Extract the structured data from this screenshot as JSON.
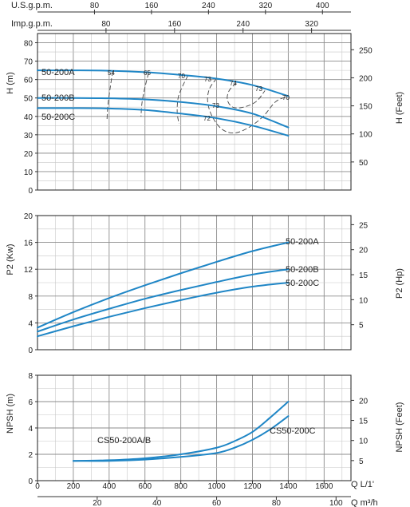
{
  "top_axes": {
    "usgpm": {
      "label": "U.S.g.p.m.",
      "ticks": [
        80,
        160,
        240,
        320,
        400
      ],
      "min": 0,
      "max": 440
    },
    "impgpm": {
      "label": "Imp.g.p.m.",
      "ticks": [
        80,
        160,
        240,
        320
      ],
      "min": 0,
      "max": 366
    }
  },
  "bottom_axes": {
    "lpm": {
      "label": "Q  L/1'",
      "ticks": [
        0,
        200,
        400,
        600,
        800,
        1000,
        1200,
        1400,
        1600
      ],
      "min": 0,
      "max": 1750
    },
    "m3h": {
      "label": "Q  m³/h",
      "ticks": [
        20,
        40,
        60,
        80,
        100
      ],
      "min": 0,
      "max": 105
    }
  },
  "chart_data": [
    {
      "type": "line",
      "panel": "head",
      "xlabel": "",
      "ylabel": "H (m)",
      "ylabel_right": "H (Feet)",
      "xlim": [
        0,
        1750
      ],
      "ylim": [
        0,
        85
      ],
      "y_ticks": [
        0,
        10,
        20,
        30,
        40,
        50,
        60,
        70,
        80
      ],
      "y_ticks_right": [
        50,
        100,
        150,
        200,
        250
      ],
      "grid": true,
      "series": [
        {
          "name": "50-200A",
          "x": [
            0,
            200,
            400,
            600,
            800,
            1000,
            1200,
            1400
          ],
          "y": [
            65,
            65,
            64.8,
            64,
            62.5,
            60.5,
            57,
            51
          ]
        },
        {
          "name": "50-200B",
          "x": [
            0,
            200,
            400,
            600,
            800,
            1000,
            1200,
            1400
          ],
          "y": [
            50,
            50,
            49.8,
            49.2,
            47.8,
            45.5,
            41.5,
            34
          ]
        },
        {
          "name": "50-200C",
          "x": [
            0,
            200,
            400,
            600,
            800,
            1000,
            1200,
            1400
          ],
          "y": [
            44.5,
            44.5,
            44.3,
            43.5,
            41.5,
            39,
            35,
            29.5
          ]
        }
      ],
      "efficiency_labels": [
        "54",
        "65",
        "70",
        "73",
        "74",
        "73",
        "70",
        "73",
        "72"
      ]
    },
    {
      "type": "line",
      "panel": "power",
      "xlabel": "",
      "ylabel": "P2 (Kw)",
      "ylabel_right": "P2 (Hp)",
      "xlim": [
        0,
        1750
      ],
      "ylim": [
        0,
        20
      ],
      "y_ticks": [
        0,
        4,
        8,
        12,
        16,
        20
      ],
      "y_ticks_right": [
        5,
        10,
        15,
        20,
        25
      ],
      "grid": true,
      "series": [
        {
          "name": "50-200A",
          "x": [
            0,
            200,
            400,
            600,
            800,
            1000,
            1200,
            1400
          ],
          "y": [
            3.3,
            5.6,
            7.7,
            9.6,
            11.4,
            13.1,
            14.7,
            16
          ]
        },
        {
          "name": "50-200B",
          "x": [
            0,
            200,
            400,
            600,
            800,
            1000,
            1200,
            1400
          ],
          "y": [
            2.7,
            4.5,
            6.1,
            7.6,
            8.9,
            10.1,
            11.2,
            12
          ]
        },
        {
          "name": "50-200C",
          "x": [
            0,
            200,
            400,
            600,
            800,
            1000,
            1200,
            1400
          ],
          "y": [
            2.0,
            3.5,
            4.9,
            6.2,
            7.4,
            8.5,
            9.4,
            10
          ]
        }
      ]
    },
    {
      "type": "line",
      "panel": "npsh",
      "xlabel": "Q  L/1'",
      "ylabel": "NPSH (m)",
      "ylabel_right": "NPSH (Feet)",
      "xlim": [
        0,
        1750
      ],
      "ylim": [
        0,
        8
      ],
      "y_ticks": [
        0,
        2,
        4,
        6,
        8
      ],
      "y_ticks_right": [
        5,
        10,
        15,
        20
      ],
      "grid": true,
      "series": [
        {
          "name": "CS50-200A/B",
          "x": [
            200,
            400,
            600,
            800,
            1000,
            1100,
            1200,
            1300,
            1400
          ],
          "y": [
            1.5,
            1.55,
            1.7,
            2.0,
            2.5,
            3.0,
            3.7,
            4.8,
            6.0
          ]
        },
        {
          "name": "CS50-200C",
          "x": [
            200,
            400,
            600,
            800,
            1000,
            1100,
            1200,
            1300,
            1400
          ],
          "y": [
            1.5,
            1.5,
            1.6,
            1.8,
            2.1,
            2.5,
            3.1,
            3.9,
            4.9
          ]
        }
      ]
    }
  ],
  "colors": {
    "curve": "#1f86c6",
    "grid_major": "#8c8c8c",
    "grid_minor": "#c8c8c8",
    "frame": "#333333",
    "dash": "#444444"
  }
}
